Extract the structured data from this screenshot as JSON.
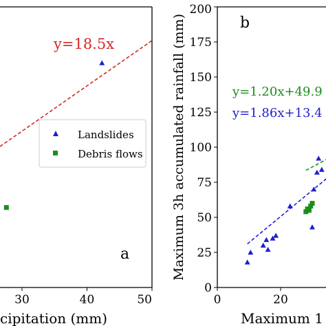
{
  "chart_data": [
    {
      "panel": "a",
      "type": "scatter",
      "title": "",
      "xlabel": "cipitation (mm)",
      "ylabel": "",
      "xlim": [
        20,
        50
      ],
      "ylim": [
        0,
        200
      ],
      "xticks": [
        "30",
        "40",
        "50"
      ],
      "grid": false,
      "legend_position": "center-right",
      "fit_line": {
        "label": "y=18.5x",
        "slope": 18.5,
        "intercept": 0,
        "color": "#d62728",
        "style": "dashed"
      },
      "series": [
        {
          "name": "Landslides",
          "marker": "triangle",
          "color": "#1f1fcf",
          "points": [
            [
              42.3,
              160
            ]
          ]
        },
        {
          "name": "Debris flows",
          "marker": "square",
          "color": "#1a8f1a",
          "points": [
            [
              27.6,
              57
            ]
          ]
        }
      ]
    },
    {
      "panel": "b",
      "type": "scatter",
      "title": "",
      "xlabel": "Maximum 1",
      "ylabel": "Maximum 3h accumulated rainfall (mm)",
      "xlim": [
        0,
        35
      ],
      "ylim": [
        0,
        200
      ],
      "xticks": [
        "0",
        "20"
      ],
      "yticks": [
        "0",
        "25",
        "50",
        "75",
        "100",
        "125",
        "150",
        "175",
        "200"
      ],
      "grid": false,
      "fit_lines": [
        {
          "label": "y=1.20x+49.9",
          "slope": 1.2,
          "intercept": 49.9,
          "color": "#1a8f1a",
          "style": "dashed",
          "x_range": [
            28,
            35
          ]
        },
        {
          "label": "y=1.86x+13.4",
          "slope": 1.86,
          "intercept": 13.4,
          "color": "#1f1fcf",
          "style": "dashed",
          "x_range": [
            9.5,
            35
          ]
        }
      ],
      "series": [
        {
          "name": "Landslides",
          "marker": "triangle",
          "color": "#1f1fcf",
          "points": [
            [
              9.5,
              18
            ],
            [
              10.5,
              25
            ],
            [
              14.5,
              30
            ],
            [
              15.5,
              34
            ],
            [
              16,
              27
            ],
            [
              17.5,
              35
            ],
            [
              18.5,
              37
            ],
            [
              23,
              58
            ],
            [
              30,
              43
            ],
            [
              30.5,
              70
            ],
            [
              31.5,
              82
            ],
            [
              32,
              92
            ],
            [
              33,
              84
            ]
          ]
        },
        {
          "name": "Debris flows",
          "marker": "square",
          "color": "#1a8f1a",
          "points": [
            [
              28,
              54
            ],
            [
              28.5,
              56
            ],
            [
              29,
              55
            ],
            [
              29.5,
              58
            ],
            [
              30,
              60
            ]
          ]
        }
      ]
    }
  ],
  "panel_a": {
    "label": "a",
    "legend": [
      "Landslides",
      "Debris flows"
    ]
  },
  "panel_b": {
    "label": "b"
  }
}
